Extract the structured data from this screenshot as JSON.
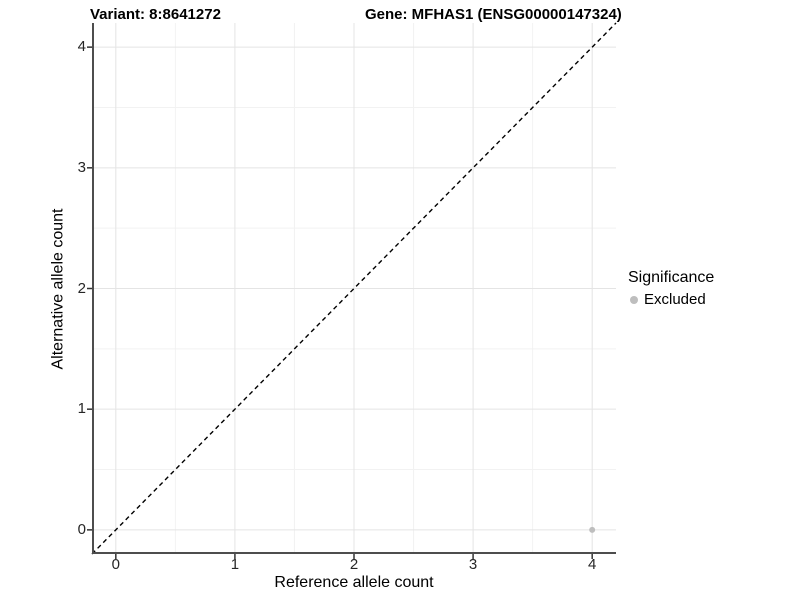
{
  "chart_data": {
    "type": "scatter",
    "title_variant": "Variant: 8:8641272",
    "title_gene": "Gene: MFHAS1 (ENSG00000147324)",
    "xlabel": "Reference allele count",
    "ylabel": "Alternative allele count",
    "xlim": [
      -0.2,
      4.2
    ],
    "ylim": [
      -0.2,
      4.2
    ],
    "x_ticks": [
      0,
      1,
      2,
      3,
      4
    ],
    "y_ticks": [
      0,
      1,
      2,
      3,
      4
    ],
    "x_minor": [
      0.5,
      1.5,
      2.5,
      3.5
    ],
    "y_minor": [
      0.5,
      1.5,
      2.5,
      3.5
    ],
    "grid": "major and minor, light gray on white",
    "points": [
      {
        "x": 4,
        "y": 0,
        "significance": "Excluded",
        "color": "#bebebe"
      }
    ],
    "reference_line": {
      "equation": "y = x",
      "style": "dashed",
      "color": "#000000"
    },
    "legend": {
      "title": "Significance",
      "position": "right",
      "entries": [
        {
          "label": "Excluded",
          "color": "#bebebe"
        }
      ]
    }
  },
  "colors": {
    "background": "#ffffff",
    "grid_major": "#e4e4e4",
    "grid_minor": "#f2f2f2",
    "axis_line": "#4d4d4d",
    "tick_mark": "#333333",
    "tick_text": "#262626",
    "title_text": "#000000"
  }
}
